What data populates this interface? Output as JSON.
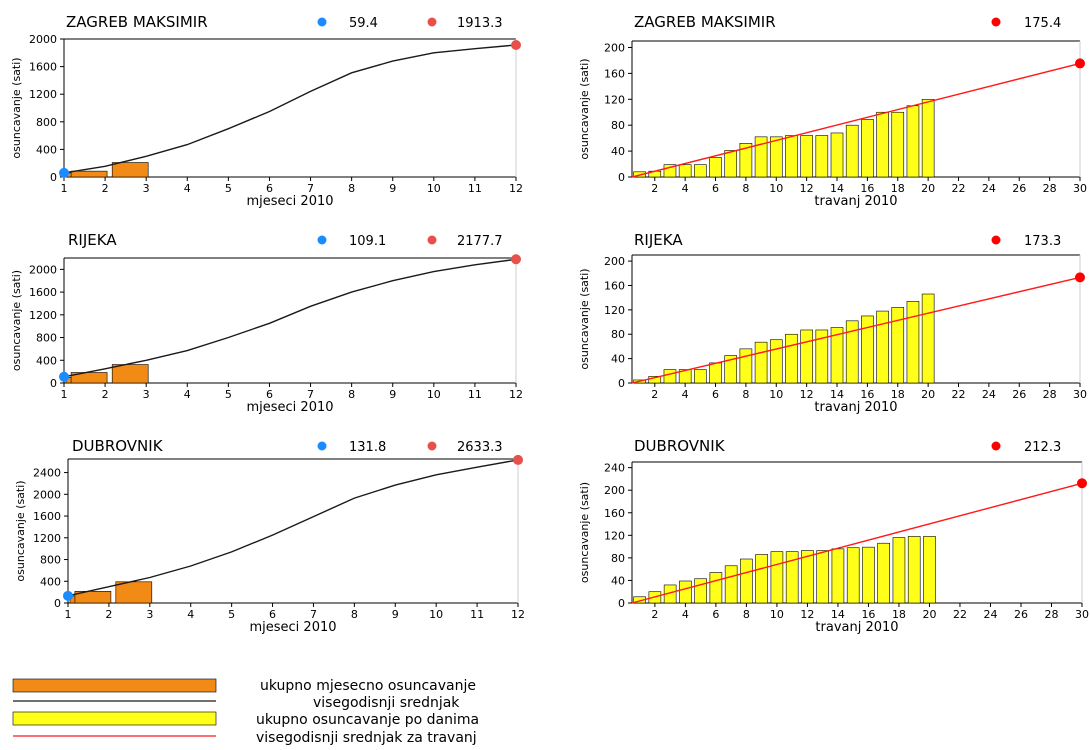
{
  "colors": {
    "bar_month": "#f28a16",
    "bar_day": "#ffff1a",
    "line_mean": "#1a1a1a",
    "line_april": "#ff1a1a",
    "dot_blue": "#1a8cff",
    "dot_salmon": "#e8504a",
    "dot_red": "#ff0000",
    "axis": "#000000",
    "right_spine": "#cccccc"
  },
  "monthly_x_label": "mjeseci 2010",
  "monthly_y_label": "osuncavanje (sati)",
  "daily_x_label": "travanj 2010",
  "daily_y_label": "osuncavanje (sati)",
  "chart_data": [
    {
      "type": "bar",
      "title": "ZAGREB MAKSIMIR",
      "val_blue": "59.4",
      "val_red": "1913.3",
      "xlabel": "mjeseci 2010",
      "ylabel": "osuncavanje (sati)",
      "xlim": [
        1,
        12
      ],
      "ylim": [
        0,
        2000
      ],
      "yticks": [
        0,
        400,
        800,
        1200,
        1600,
        2000
      ],
      "xticks": [
        1,
        2,
        3,
        4,
        5,
        6,
        7,
        8,
        9,
        10,
        11,
        12
      ],
      "series": [
        {
          "name": "ukupno mjesecno osuncavanje",
          "type": "bar",
          "x": [
            1,
            2,
            3
          ],
          "values": [
            60,
            85,
            210
          ]
        },
        {
          "name": "visegodisnji srednjak",
          "type": "line",
          "x": [
            1,
            2,
            3,
            4,
            5,
            6,
            7,
            8,
            9,
            10,
            11,
            12
          ],
          "values": [
            59.4,
            155,
            300,
            470,
            700,
            950,
            1240,
            1510,
            1680,
            1800,
            1860,
            1913.3
          ]
        }
      ]
    },
    {
      "type": "bar",
      "title": "ZAGREB MAKSIMIR",
      "val_red": "175.4",
      "xlabel": "travanj 2010",
      "ylabel": "osuncavanje (sati)",
      "xlim": [
        1,
        30
      ],
      "ylim": [
        0,
        210
      ],
      "yticks": [
        0,
        40,
        80,
        120,
        160,
        200
      ],
      "xticks": [
        2,
        4,
        6,
        8,
        10,
        12,
        14,
        16,
        18,
        20,
        22,
        24,
        26,
        28,
        30
      ],
      "series": [
        {
          "name": "ukupno osuncavanje po danima",
          "type": "bar",
          "x": [
            1,
            2,
            3,
            4,
            5,
            6,
            7,
            8,
            9,
            10,
            11,
            12,
            13,
            14,
            15,
            16,
            17,
            18,
            19,
            20
          ],
          "values": [
            8,
            9,
            19,
            19,
            19,
            30,
            41,
            52,
            62,
            62,
            64,
            64,
            64,
            68,
            80,
            89,
            100,
            100,
            110,
            120
          ]
        },
        {
          "name": "visegodisnji srednjak za travanj",
          "type": "line",
          "x": [
            1,
            30
          ],
          "values": [
            0,
            175.4
          ]
        }
      ]
    },
    {
      "type": "bar",
      "title": "RIJEKA",
      "val_blue": "109.1",
      "val_red": "2177.7",
      "xlabel": "mjeseci 2010",
      "ylabel": "osuncavanje (sati)",
      "xlim": [
        1,
        12
      ],
      "ylim": [
        0,
        2200
      ],
      "yticks": [
        0,
        400,
        800,
        1200,
        1600,
        2000
      ],
      "xticks": [
        1,
        2,
        3,
        4,
        5,
        6,
        7,
        8,
        9,
        10,
        11,
        12
      ],
      "series": [
        {
          "name": "ukupno mjesecno osuncavanje",
          "type": "bar",
          "x": [
            1,
            2,
            3
          ],
          "values": [
            100,
            185,
            325
          ]
        },
        {
          "name": "visegodisnji srednjak",
          "type": "line",
          "x": [
            1,
            2,
            3,
            4,
            5,
            6,
            7,
            8,
            9,
            10,
            11,
            12
          ],
          "values": [
            109.1,
            250,
            400,
            570,
            800,
            1050,
            1350,
            1600,
            1800,
            1960,
            2080,
            2177.7
          ]
        }
      ]
    },
    {
      "type": "bar",
      "title": "RIJEKA",
      "val_red": "173.3",
      "xlabel": "travanj 2010",
      "ylabel": "osuncavanje (sati)",
      "xlim": [
        1,
        30
      ],
      "ylim": [
        0,
        210
      ],
      "yticks": [
        0,
        40,
        80,
        120,
        160,
        200
      ],
      "xticks": [
        2,
        4,
        6,
        8,
        10,
        12,
        14,
        16,
        18,
        20,
        22,
        24,
        26,
        28,
        30
      ],
      "series": [
        {
          "name": "ukupno osuncavanje po danima",
          "type": "bar",
          "x": [
            1,
            2,
            3,
            4,
            5,
            6,
            7,
            8,
            9,
            10,
            11,
            12,
            13,
            14,
            15,
            16,
            17,
            18,
            19,
            20
          ],
          "values": [
            5,
            11,
            22,
            22,
            22,
            33,
            45,
            56,
            67,
            71,
            80,
            87,
            87,
            91,
            102,
            110,
            118,
            124,
            134,
            146
          ]
        },
        {
          "name": "visegodisnji srednjak za travanj",
          "type": "line",
          "x": [
            1,
            30
          ],
          "values": [
            0,
            173.3
          ]
        }
      ]
    },
    {
      "type": "bar",
      "title": "DUBROVNIK",
      "val_blue": "131.8",
      "val_red": "2633.3",
      "xlabel": "mjeseci 2010",
      "ylabel": "osuncavanje (sati)",
      "xlim": [
        1,
        12
      ],
      "ylim": [
        0,
        2650
      ],
      "yticks": [
        0,
        400,
        800,
        1200,
        1600,
        2000,
        2400
      ],
      "xticks": [
        1,
        2,
        3,
        4,
        5,
        6,
        7,
        8,
        9,
        10,
        11,
        12
      ],
      "series": [
        {
          "name": "ukupno mjesecno osuncavanje",
          "type": "bar",
          "x": [
            1,
            2,
            3
          ],
          "values": [
            130,
            215,
            390
          ]
        },
        {
          "name": "visegodisnji srednjak",
          "type": "line",
          "x": [
            1,
            2,
            3,
            4,
            5,
            6,
            7,
            8,
            9,
            10,
            11,
            12
          ],
          "values": [
            131.8,
            300,
            470,
            680,
            940,
            1250,
            1590,
            1930,
            2170,
            2360,
            2500,
            2633.3
          ]
        }
      ]
    },
    {
      "type": "bar",
      "title": "DUBROVNIK",
      "val_red": "212.3",
      "xlabel": "travanj 2010",
      "ylabel": "osuncavanje (sati)",
      "xlim": [
        1,
        30
      ],
      "ylim": [
        0,
        250
      ],
      "yticks": [
        0,
        40,
        80,
        120,
        160,
        200,
        240
      ],
      "xticks": [
        2,
        4,
        6,
        8,
        10,
        12,
        14,
        16,
        18,
        20,
        22,
        24,
        26,
        28,
        30
      ],
      "series": [
        {
          "name": "ukupno osuncavanje po danima",
          "type": "bar",
          "x": [
            1,
            2,
            3,
            4,
            5,
            6,
            7,
            8,
            9,
            10,
            11,
            12,
            13,
            14,
            15,
            16,
            17,
            18,
            19,
            20
          ],
          "values": [
            11,
            20,
            32,
            39,
            43,
            54,
            66,
            78,
            86,
            91,
            91,
            93,
            93,
            96,
            98,
            99,
            106,
            116,
            118,
            118
          ]
        },
        {
          "name": "visegodisnji srednjak za travanj",
          "type": "line",
          "x": [
            1,
            30
          ],
          "values": [
            0,
            212.3
          ]
        }
      ]
    }
  ],
  "legend": [
    {
      "label": "ukupno mjesecno osuncavanje",
      "kind": "orange-bar"
    },
    {
      "label": "visegodisnji srednjak",
      "kind": "black-line"
    },
    {
      "label": "ukupno osuncavanje po danima",
      "kind": "yellow-bar"
    },
    {
      "label": "visegodisnji srednjak za travanj",
      "kind": "red-line"
    }
  ]
}
